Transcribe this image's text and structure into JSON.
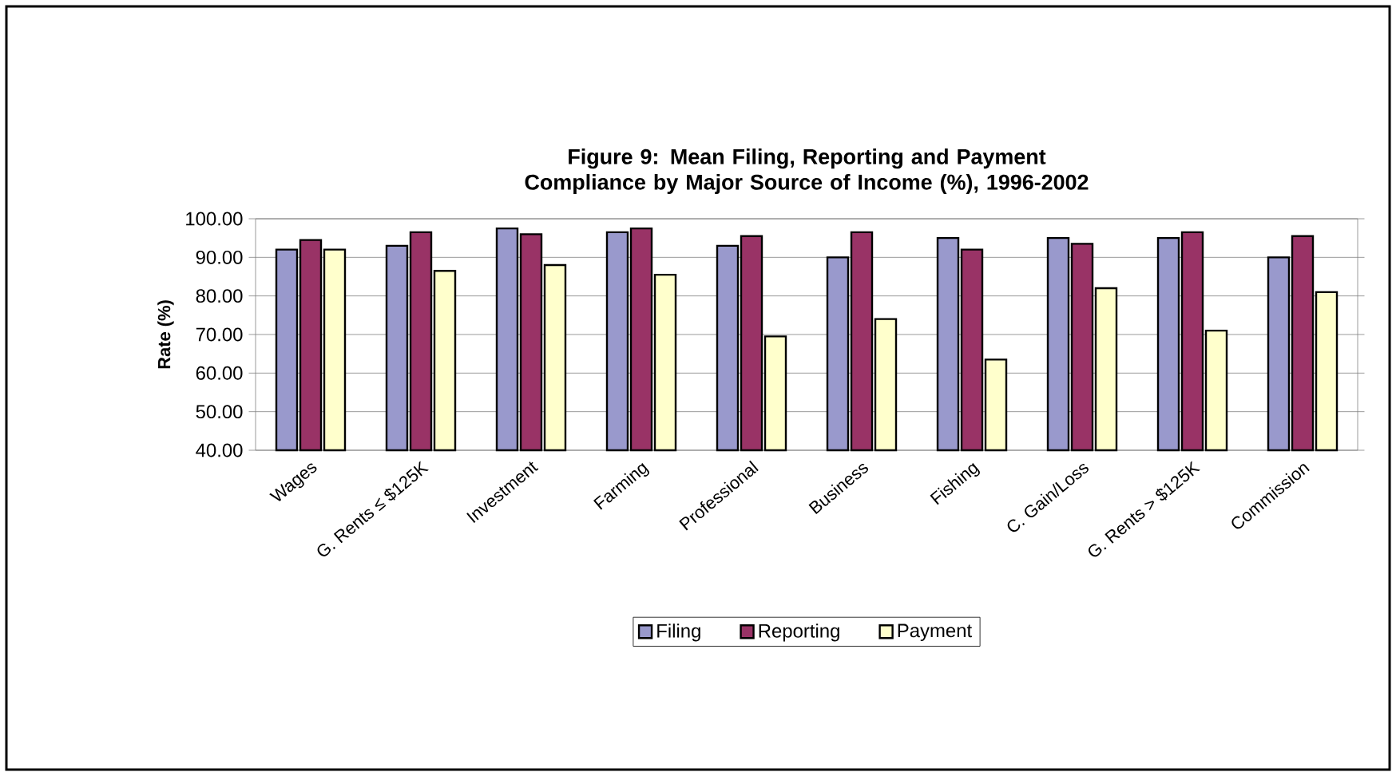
{
  "chart_data": {
    "type": "bar",
    "title": "Figure 9: Mean Filing, Reporting and Payment Compliance by Major Source of Income (%), 1996-2002",
    "ylabel": "Rate (%)",
    "categories": [
      "Wages",
      "G. Rents ≤ $125K",
      "Investment",
      "Farming",
      "Professional",
      "Business",
      "Fishing",
      "C. Gain/Loss",
      "G. Rents > $125K",
      "Commission"
    ],
    "series": [
      {
        "name": "Filing",
        "color": "#9999cc",
        "values": [
          92,
          93,
          97.5,
          96.5,
          93,
          90,
          95,
          95,
          95,
          90
        ]
      },
      {
        "name": "Reporting",
        "color": "#993366",
        "values": [
          94.5,
          96.5,
          96,
          97.5,
          95.5,
          96.5,
          92,
          93.5,
          96.5,
          95.5
        ]
      },
      {
        "name": "Payment",
        "color": "#ffffcc",
        "values": [
          92,
          86.5,
          88,
          85.5,
          69.5,
          74,
          63.5,
          82,
          71,
          81
        ]
      }
    ],
    "ylim": [
      40,
      100
    ],
    "yticks": [
      {
        "value": 40,
        "label": "40.00"
      },
      {
        "value": 50,
        "label": "50.00"
      },
      {
        "value": 60,
        "label": "60.00"
      },
      {
        "value": 70,
        "label": "70.00"
      },
      {
        "value": 80,
        "label": "80.00"
      },
      {
        "value": 90,
        "label": "90.00"
      },
      {
        "value": 100,
        "label": "100.00"
      }
    ],
    "grid": "y",
    "legend": "bottom"
  }
}
